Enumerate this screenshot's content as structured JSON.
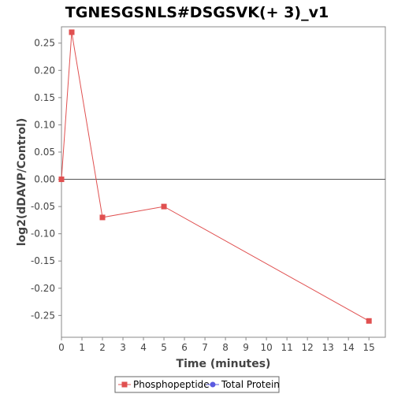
{
  "chart_data": {
    "type": "line",
    "title": "TGNESGSNLS#DSGSVK(+ 3)_v1",
    "xlabel": "Time (minutes)",
    "ylabel": "log2(dDAVP/Control)",
    "xlim": [
      0,
      15.8
    ],
    "ylim": [
      -0.29,
      0.28
    ],
    "x_ticks": [
      0,
      1,
      2,
      3,
      4,
      5,
      6,
      7,
      8,
      9,
      10,
      11,
      12,
      13,
      14,
      15
    ],
    "y_ticks": [
      0.25,
      0.2,
      0.15,
      0.1,
      0.05,
      0.0,
      -0.05,
      -0.1,
      -0.15,
      -0.2,
      -0.25
    ],
    "y_tick_labels": [
      "0.25",
      "0.20",
      "0.15",
      "0.10",
      "0.05",
      "0.00",
      "-0.05",
      "-0.10",
      "-0.15",
      "-0.20",
      "-0.25"
    ],
    "zero_line": true,
    "grid": false,
    "legend_position": "bottom",
    "series": [
      {
        "name": "Phosphopeptide",
        "color": "#e05050",
        "marker": "square",
        "x": [
          0,
          0.5,
          2,
          5,
          15
        ],
        "y": [
          0.0,
          0.27,
          -0.07,
          -0.05,
          -0.26
        ]
      },
      {
        "name": "Total Protein",
        "color": "#5a5ae0",
        "marker": "circle",
        "x": [],
        "y": []
      }
    ]
  }
}
